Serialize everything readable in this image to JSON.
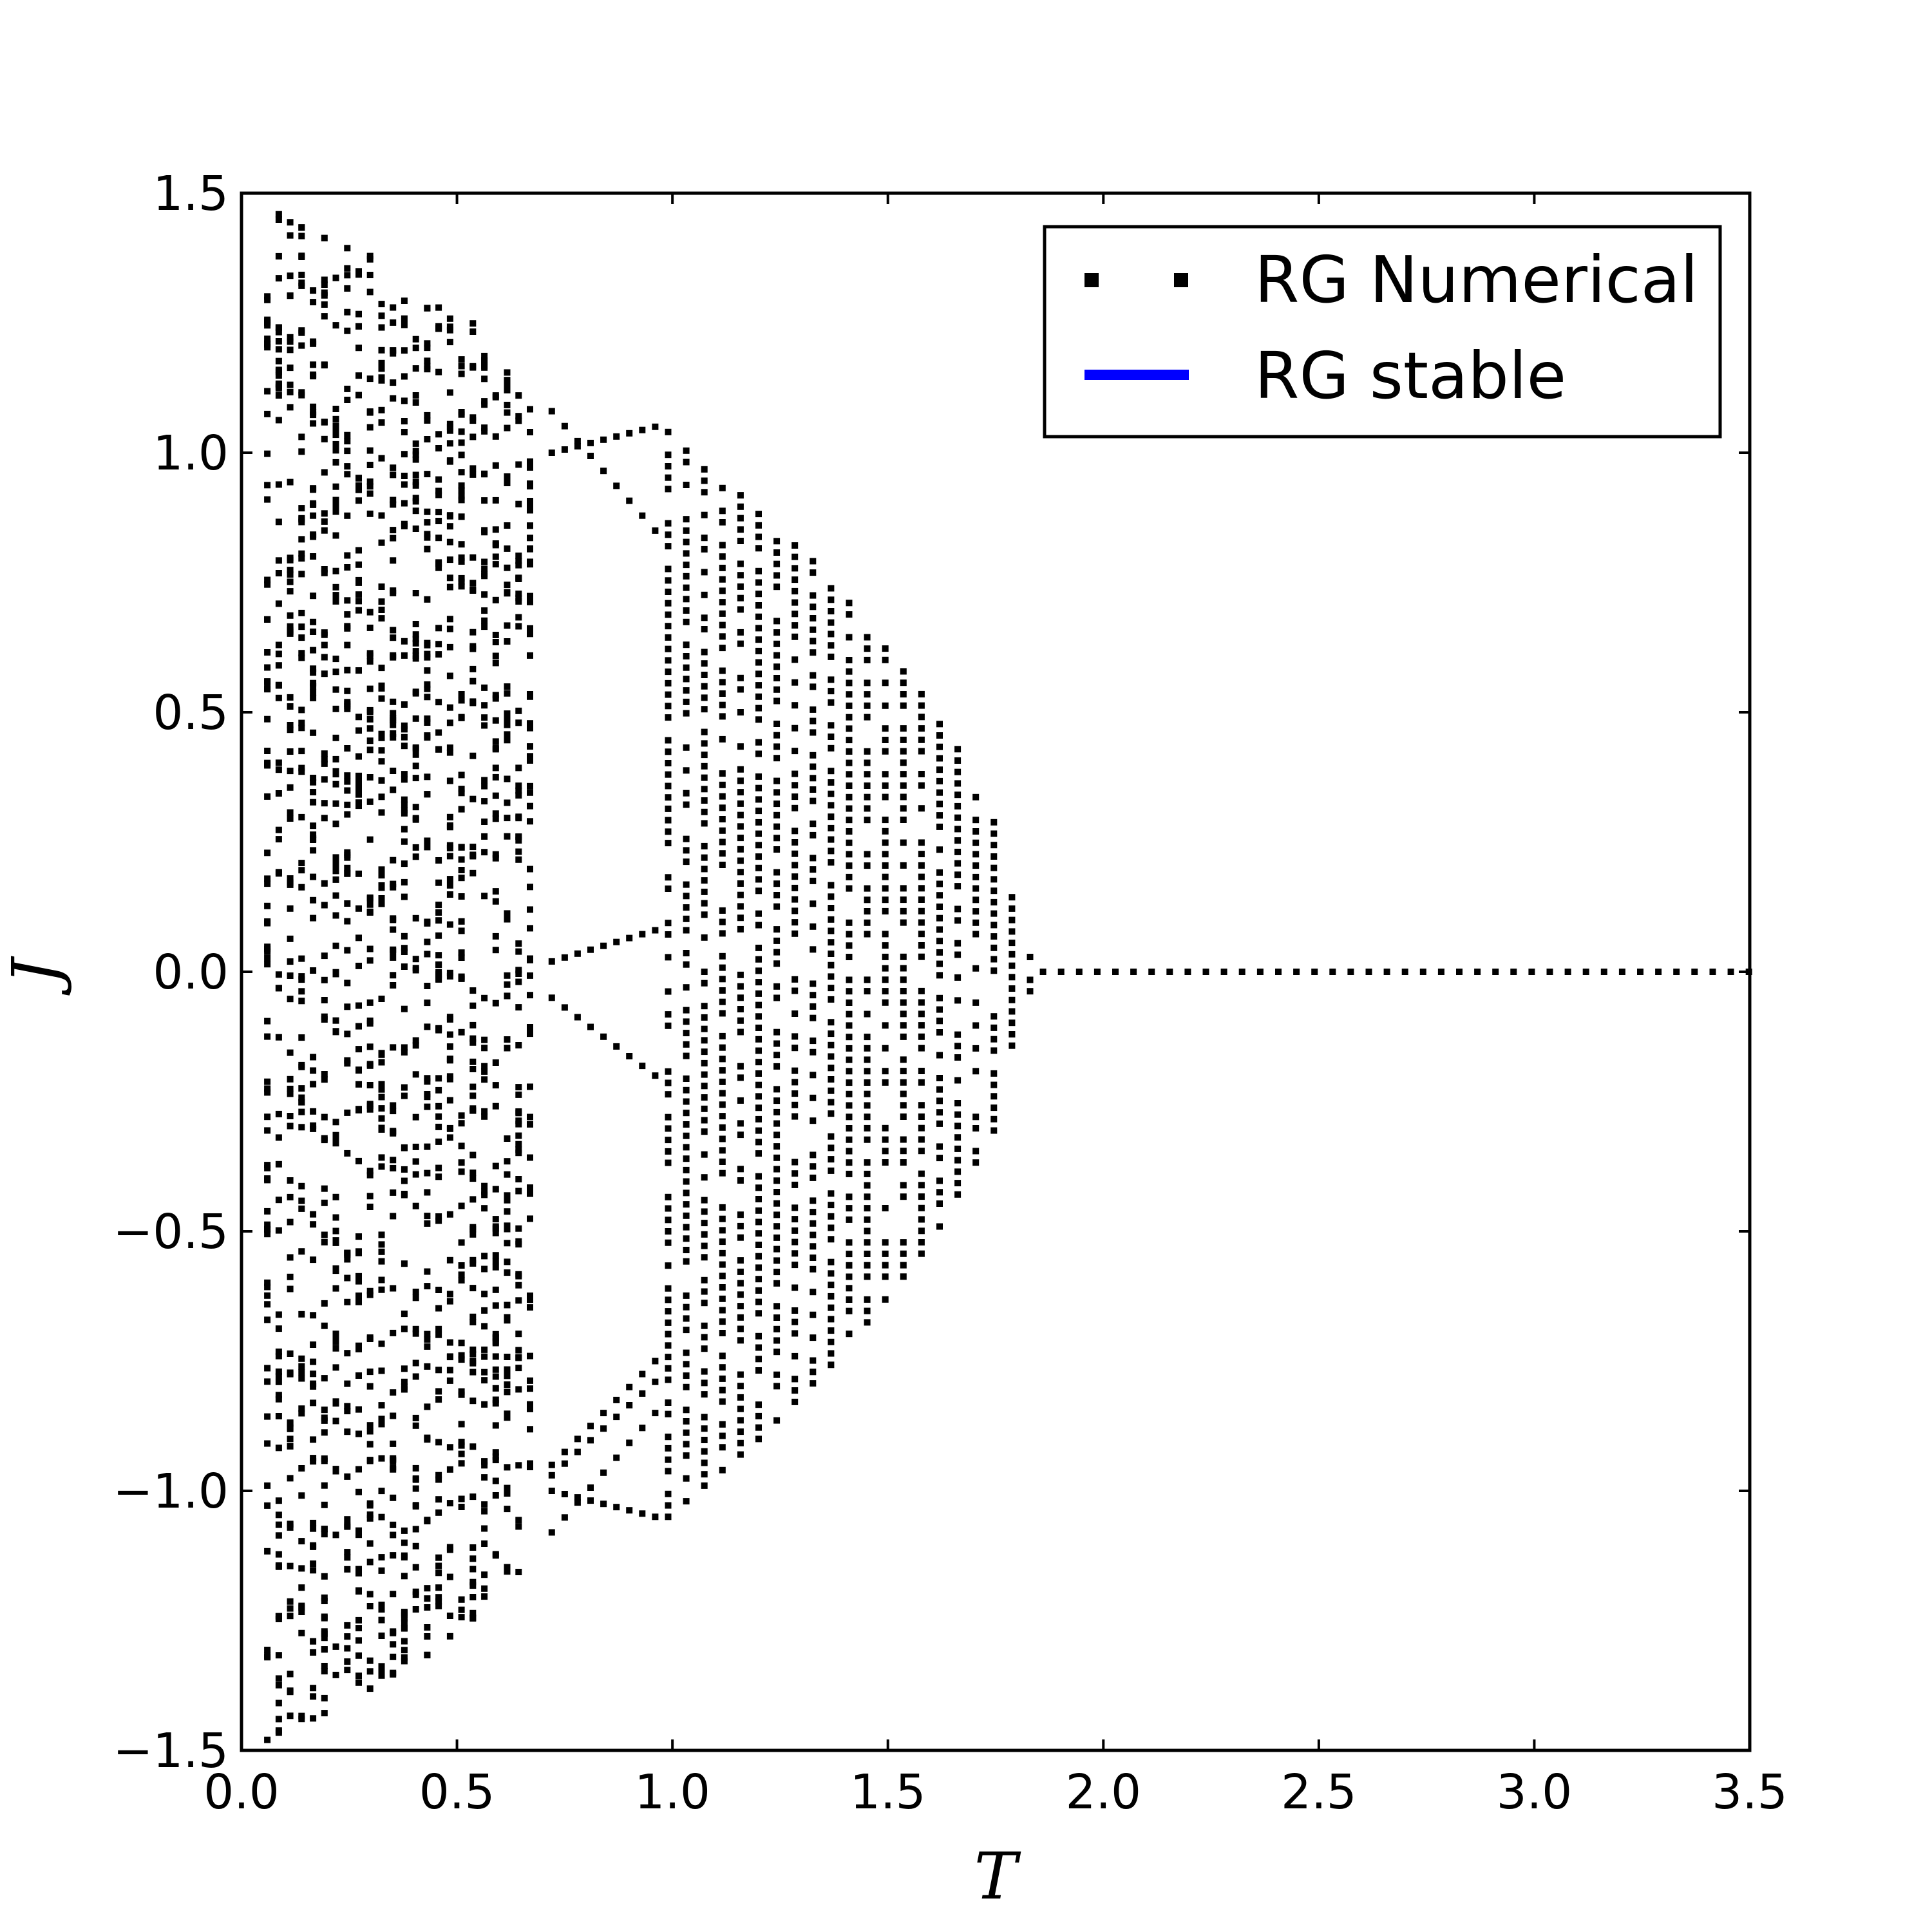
{
  "chart_data": {
    "type": "scatter",
    "xlabel": "T",
    "ylabel": "J",
    "xlim": [
      0.0,
      3.5
    ],
    "ylim": [
      -1.5,
      1.5
    ],
    "x_ticks": [
      "0.0",
      "0.5",
      "1.0",
      "1.5",
      "2.0",
      "2.5",
      "3.0",
      "3.5"
    ],
    "y_ticks": [
      "1.5",
      "1.0",
      "0.5",
      "0.0",
      "−0.5",
      "−1.0",
      "−1.5"
    ],
    "grid": false,
    "legend_position": "top-right",
    "series": [
      {
        "name": "RG Numerical",
        "kind": "markers",
        "color": "#000000",
        "branch_envelope": [
          {
            "T": 0.06,
            "J_max": 1.48
          },
          {
            "T": 0.2,
            "J_max": 1.43
          },
          {
            "T": 0.35,
            "J_max": 1.36
          },
          {
            "T": 0.5,
            "J_max": 1.28
          },
          {
            "T": 0.62,
            "J_max": 1.18
          },
          {
            "T": 0.72,
            "J_max": 1.08
          },
          {
            "T": 0.8,
            "J_max": 1.0
          },
          {
            "T": 0.9,
            "J_max": 1.01
          },
          {
            "T": 0.99,
            "J_max": 1.05
          },
          {
            "T": 1.2,
            "J_max": 0.9
          },
          {
            "T": 1.4,
            "J_max": 0.73
          },
          {
            "T": 1.6,
            "J_max": 0.52
          },
          {
            "T": 1.75,
            "J_max": 0.3
          },
          {
            "T": 1.82,
            "J_max": 0.05
          },
          {
            "T": 1.86,
            "J_max": 0.0
          },
          {
            "T": 3.5,
            "J_max": 0.0
          }
        ]
      },
      {
        "name": "RG stable",
        "kind": "line",
        "color": "#0000ff",
        "points": []
      }
    ]
  }
}
